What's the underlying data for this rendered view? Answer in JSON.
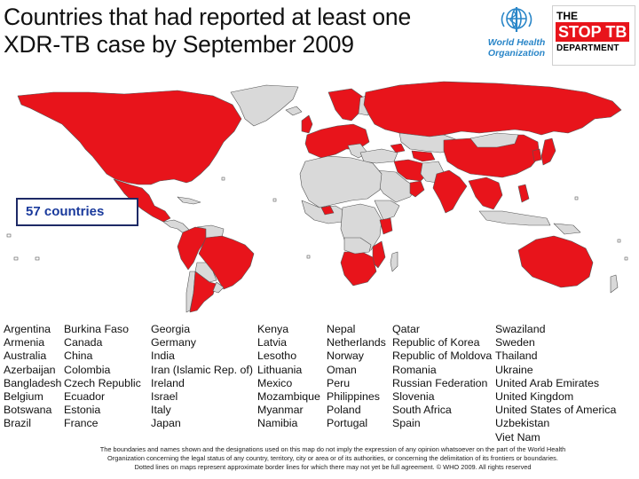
{
  "title_line1": "Countries that had reported at least one",
  "title_line2": "XDR-TB case by September 2009",
  "who_logo": {
    "icon": "who-emblem-icon",
    "text_line1": "World Health",
    "text_line2": "Organization"
  },
  "stoptb_logo": {
    "line1": "THE",
    "line2": "STOP TB",
    "line3": "DEPARTMENT"
  },
  "count_label": "57 countries",
  "colors": {
    "reported": "#e8141b",
    "not_reported": "#d9d9d9",
    "border": "#555555",
    "accent": "#1e2a66"
  },
  "country_columns": [
    [
      "Argentina",
      "Armenia",
      "Australia",
      "Azerbaijan",
      "Bangladesh",
      "Belgium",
      "Botswana",
      "Brazil"
    ],
    [
      "Burkina Faso",
      "Canada",
      "China",
      "Colombia",
      "Czech Republic",
      "Ecuador",
      "Estonia",
      "France"
    ],
    [
      "Georgia",
      "Germany",
      "India",
      "Iran (Islamic Rep. of)",
      "Ireland",
      "Israel",
      "Italy",
      "Japan"
    ],
    [
      "Kenya",
      "Latvia",
      "Lesotho",
      "Lithuania",
      "Mexico",
      "Mozambique",
      "Myanmar",
      "Namibia"
    ],
    [
      "Nepal",
      "Netherlands",
      "Norway",
      "Oman",
      "Peru",
      "Philippines",
      "Poland",
      "Portugal"
    ],
    [
      "Qatar",
      "Republic of Korea",
      "Republic of Moldova",
      "Romania",
      "Russian Federation",
      "Slovenia",
      "South Africa",
      "Spain"
    ],
    [
      "Swaziland",
      "Sweden",
      "Thailand",
      "Ukraine",
      "United Arab Emirates",
      "United Kingdom",
      "United States of America",
      "Uzbekistan",
      "Viet Nam"
    ]
  ],
  "disclaimer": [
    "The boundaries and names shown and the designations used on this map do not imply the expression of any opinion whatsoever on the part of the World Health",
    "Organization concerning the legal status of any country, territory, city or area or of its authorities, or concerning the delimitation of its frontiers or boundaries.",
    "Dotted lines on maps represent approximate border lines for which there may not yet be full agreement.  © WHO 2009. All rights reserved"
  ]
}
